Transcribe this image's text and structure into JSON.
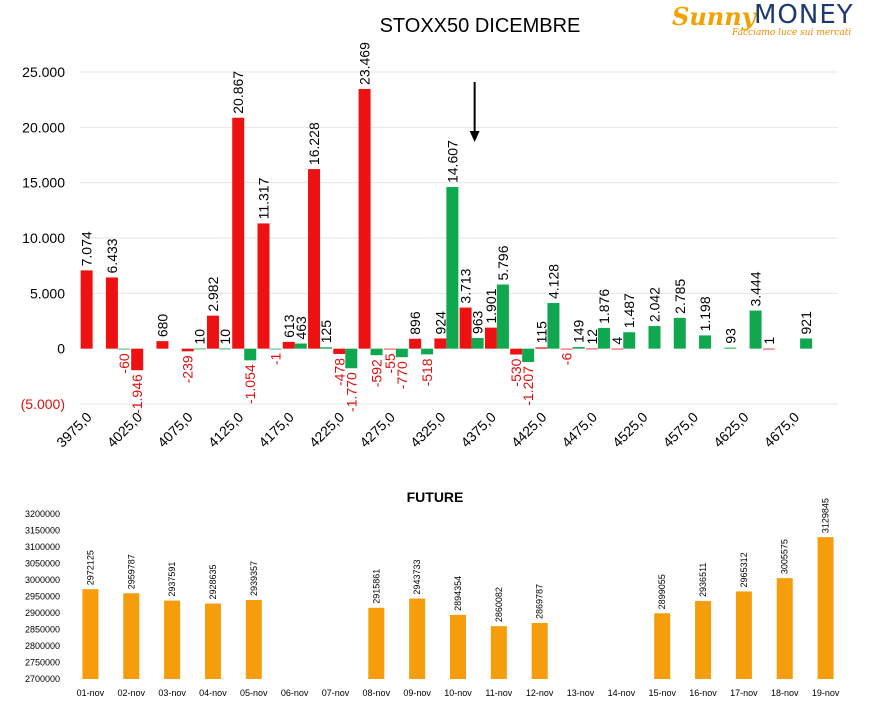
{
  "logo": {
    "brand_a": "Sunny",
    "brand_b": "MONEY",
    "tagline": "Facciamo luce sui mercati"
  },
  "colors": {
    "call": "#ee1111",
    "put": "#10a84e",
    "future": "#f59d0a",
    "negative_label": "#dd1111",
    "axis_text": "#000000",
    "grid": "#e6e6e6"
  },
  "chart_data": [
    {
      "type": "bar",
      "title": "STOXX50 DICEMBRE",
      "xlabel": "",
      "ylabel": "",
      "ylim": [
        -5000,
        25000
      ],
      "yticks": [
        {
          "value": 25000,
          "label": "25.000"
        },
        {
          "value": 20000,
          "label": "20.000"
        },
        {
          "value": 15000,
          "label": "15.000"
        },
        {
          "value": 10000,
          "label": "10.000"
        },
        {
          "value": 5000,
          "label": "5.000"
        },
        {
          "value": 0,
          "label": "0"
        },
        {
          "value": -5000,
          "label": "(5.000)"
        }
      ],
      "grid": true,
      "legend": "none",
      "annotation": "arrow pointing down at strike 4350,0",
      "arrow_at": "4350,0",
      "categories": [
        "3975,0",
        "4000,0",
        "4025,0",
        "4050,0",
        "4075,0",
        "4100,0",
        "4125,0",
        "4150,0",
        "4175,0",
        "4200,0",
        "4225,0",
        "4250,0",
        "4275,0",
        "4300,0",
        "4325,0",
        "4350,0",
        "4375,0",
        "4400,0",
        "4425,0",
        "4450,0",
        "4475,0",
        "4500,0",
        "4525,0",
        "4550,0",
        "4575,0",
        "4600,0",
        "4625,0",
        "4650,0",
        "4675,0",
        "4700,0"
      ],
      "xtick_labels": [
        "3975,0",
        "4025,0",
        "4075,0",
        "4125,0",
        "4175,0",
        "4225,0",
        "4275,0",
        "4325,0",
        "4375,0",
        "4425,0",
        "4475,0",
        "4525,0",
        "4575,0",
        "4625,0",
        "4675,0"
      ],
      "series": [
        {
          "color": "#ee1111",
          "values": [
            7074,
            6433,
            -1946,
            680,
            -239,
            2982,
            20867,
            11317,
            613,
            16228,
            -478,
            23469,
            -55,
            896,
            924,
            3713,
            1901,
            -530,
            115,
            -6,
            12,
            4,
            null,
            null,
            null,
            null,
            null,
            1,
            null,
            null
          ],
          "labels": [
            "7.074",
            "6.433",
            "-1.946",
            "680",
            "-239",
            "2.982",
            "20.867",
            "11.317",
            "613",
            "16.228",
            "-478",
            "23.469",
            "-55",
            "896",
            "924",
            "3.713",
            "1.901",
            "-530",
            "115",
            "-6",
            "12",
            "4",
            "",
            "",
            "",
            "",
            "",
            "1",
            "",
            ""
          ]
        },
        {
          "color": "#10a84e",
          "values": [
            null,
            -60,
            null,
            null,
            10,
            10,
            -1054,
            -1,
            463,
            125,
            -1770,
            -592,
            -770,
            -518,
            14607,
            963,
            5796,
            -1207,
            4128,
            149,
            1876,
            1487,
            2042,
            2785,
            1198,
            93,
            3444,
            null,
            921,
            null
          ],
          "labels": [
            "",
            "-60",
            "",
            "",
            "10",
            "10",
            "-1.054",
            "-1",
            "463",
            "125",
            "-1.770",
            "-592",
            "-770",
            "-518",
            "14.607",
            "963",
            "5.796",
            "-1.207",
            "4.128",
            "149",
            "1.876",
            "1.487",
            "2.042",
            "2.785",
            "1.198",
            "93",
            "3.444",
            "",
            "921",
            ""
          ]
        }
      ]
    },
    {
      "type": "bar",
      "title": "FUTURE",
      "xlabel": "",
      "ylabel": "",
      "ylim": [
        2700000,
        3200000
      ],
      "yticks": [
        {
          "value": 3200000,
          "label": "3200000"
        },
        {
          "value": 3150000,
          "label": "3150000"
        },
        {
          "value": 3100000,
          "label": "3100000"
        },
        {
          "value": 3050000,
          "label": "3050000"
        },
        {
          "value": 3000000,
          "label": "3000000"
        },
        {
          "value": 2950000,
          "label": "2950000"
        },
        {
          "value": 2900000,
          "label": "2900000"
        },
        {
          "value": 2850000,
          "label": "2850000"
        },
        {
          "value": 2800000,
          "label": "2800000"
        },
        {
          "value": 2750000,
          "label": "2750000"
        },
        {
          "value": 2700000,
          "label": "2700000"
        }
      ],
      "grid": false,
      "legend": "none",
      "categories": [
        "01-nov",
        "02-nov",
        "03-nov",
        "04-nov",
        "05-nov",
        "06-nov",
        "07-nov",
        "08-nov",
        "09-nov",
        "10-nov",
        "11-nov",
        "12-nov",
        "13-nov",
        "14-nov",
        "15-nov",
        "16-nov",
        "17-nov",
        "18-nov",
        "19-nov"
      ],
      "series": [
        {
          "color": "#f59d0a",
          "values": [
            2972125,
            2959787,
            2937591,
            2928635,
            2939357,
            null,
            null,
            2915861,
            2943733,
            2894354,
            2860082,
            2869787,
            null,
            null,
            2899055,
            2936511,
            2965312,
            3005575,
            3129845
          ],
          "labels": [
            "2972125",
            "2959787",
            "2937591",
            "2928635",
            "2939357",
            "",
            "",
            "2915861",
            "2943733",
            "2894354",
            "2860082",
            "2869787",
            "",
            "",
            "2899055",
            "2936511",
            "2965312",
            "3005575",
            "3129845"
          ]
        }
      ]
    }
  ]
}
